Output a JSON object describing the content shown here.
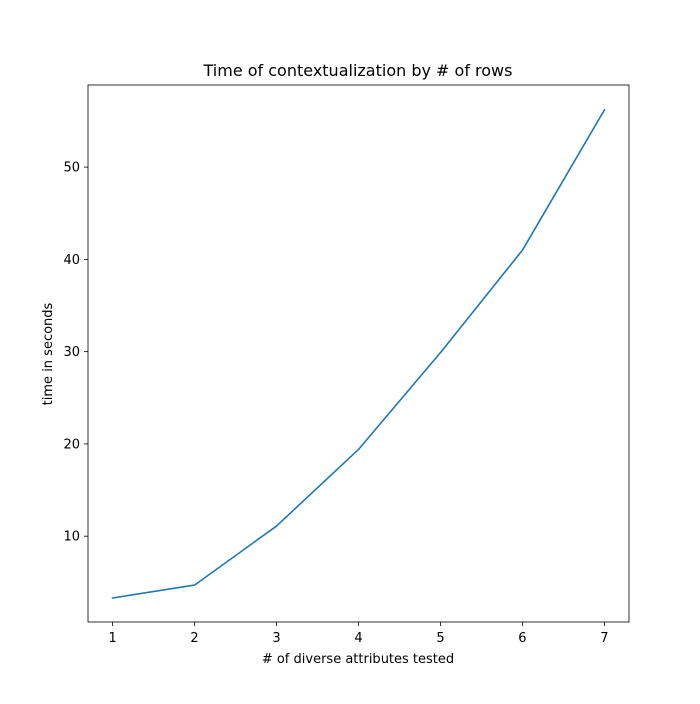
{
  "chart_data": {
    "type": "line",
    "title": "Time of contextualization by # of rows",
    "xlabel": "# of diverse attributes tested",
    "ylabel": "time in seconds",
    "x": [
      1,
      2,
      3,
      4,
      5,
      6,
      7
    ],
    "xticks": [
      1,
      2,
      3,
      4,
      5,
      6,
      7
    ],
    "yticks": [
      10,
      20,
      30,
      40,
      50
    ],
    "xlim": [
      0.7,
      7.3
    ],
    "ylim": [
      0.7,
      58.9
    ],
    "grid": false,
    "series": [
      {
        "values": [
          3.3,
          4.7,
          11.1,
          19.4,
          29.9,
          41.0,
          56.2
        ],
        "color": "#1f77b4"
      }
    ]
  }
}
